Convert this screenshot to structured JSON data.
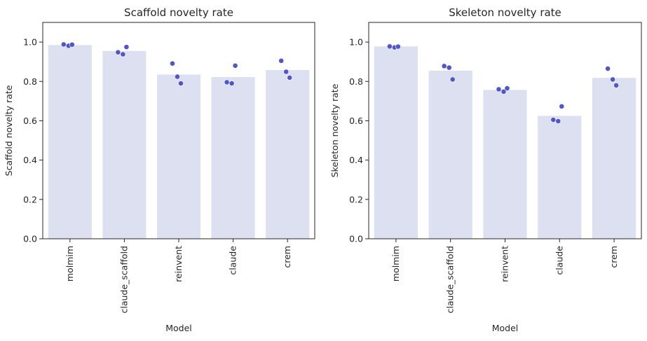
{
  "chart_data": [
    {
      "type": "bar",
      "title": "Scaffold novelty rate",
      "xlabel": "Model",
      "ylabel": "Scaffold novelty rate",
      "ylim": [
        0,
        1.1
      ],
      "yticks": [
        0.0,
        0.2,
        0.4,
        0.6,
        0.8,
        1.0
      ],
      "yticklabels": [
        "0.0",
        "0.2",
        "0.4",
        "0.6",
        "0.8",
        "1.0"
      ],
      "categories": [
        "molmim",
        "claude_scaffold",
        "reinvent",
        "claude",
        "crem"
      ],
      "values": [
        0.985,
        0.955,
        0.835,
        0.822,
        0.858
      ],
      "points": [
        [
          0.988,
          0.981,
          0.987
        ],
        [
          0.948,
          0.938,
          0.975
        ],
        [
          0.891,
          0.824,
          0.79
        ],
        [
          0.796,
          0.79,
          0.88
        ],
        [
          0.905,
          0.849,
          0.819
        ]
      ],
      "grid": false,
      "colors": {
        "bar": "#dde0f0",
        "point": "#5056c8",
        "point_edge": "#ffffff"
      }
    },
    {
      "type": "bar",
      "title": "Skeleton novelty rate",
      "xlabel": "Model",
      "ylabel": "Skeleton novelty rate",
      "ylim": [
        0,
        1.1
      ],
      "yticks": [
        0.0,
        0.2,
        0.4,
        0.6,
        0.8,
        1.0
      ],
      "yticklabels": [
        "0.0",
        "0.2",
        "0.4",
        "0.6",
        "0.8",
        "1.0"
      ],
      "categories": [
        "molmim",
        "claude_scaffold",
        "reinvent",
        "claude",
        "crem"
      ],
      "values": [
        0.978,
        0.855,
        0.757,
        0.625,
        0.818
      ],
      "points": [
        [
          0.978,
          0.973,
          0.977
        ],
        [
          0.878,
          0.87,
          0.81
        ],
        [
          0.76,
          0.748,
          0.765
        ],
        [
          0.605,
          0.598,
          0.673
        ],
        [
          0.865,
          0.81,
          0.78
        ]
      ],
      "grid": false,
      "colors": {
        "bar": "#dde0f0",
        "point": "#5056c8",
        "point_edge": "#ffffff"
      }
    }
  ]
}
